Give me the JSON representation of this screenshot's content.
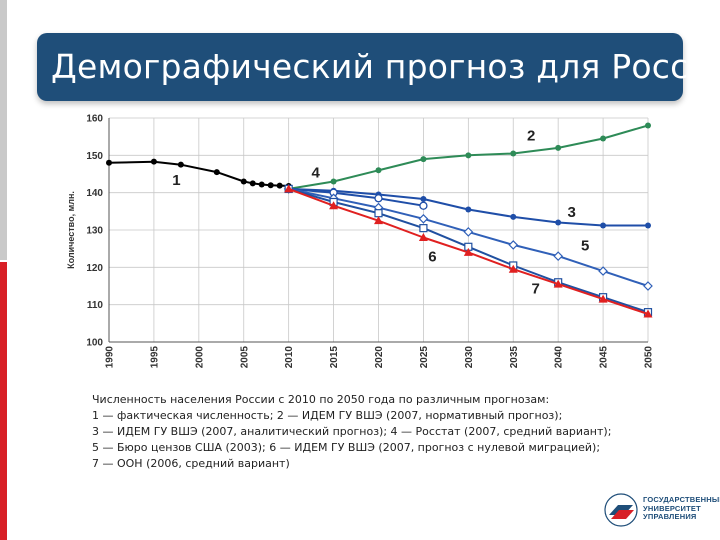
{
  "slide": {
    "title": "Демографический прогноз для России",
    "caption_lines": [
      "Численность населения России с 2010 по 2050 года по различным прогнозам:",
      "1 — фактическая численность; 2 — ИДЕМ ГУ ВШЭ (2007, нормативный прогноз);",
      "3 — ИДЕМ ГУ ВШЭ (2007, аналитический прогноз); 4 — Росстат (2007, средний вариант);",
      "5 — Бюро цензов США (2003); 6 — ИДЕМ ГУ ВШЭ (2007, прогноз с нулевой миграцией);",
      "7 — ООН (2006, средний вариант)"
    ],
    "logo_lines": [
      "ГОСУДАРСТВЕННЫЙ",
      "УНИВЕРСИТЕТ",
      "УПРАВЛЕНИЯ"
    ],
    "colors": {
      "title_bg": "#1f4e79",
      "accent_red": "#d81f26"
    }
  },
  "chart_data": {
    "type": "line",
    "ylabel": "Количество, млн.",
    "xlabel": "",
    "xlim": [
      1990,
      2050
    ],
    "ylim": [
      100,
      160
    ],
    "x_ticks": [
      1990,
      1995,
      2000,
      2005,
      2010,
      2015,
      2020,
      2025,
      2030,
      2035,
      2040,
      2045,
      2050
    ],
    "y_ticks": [
      100,
      110,
      120,
      130,
      140,
      150,
      160
    ],
    "grid": true,
    "series": [
      {
        "name": "1",
        "color": "#000000",
        "marker": "dot",
        "x": [
          1990,
          1995,
          1998,
          2002,
          2005,
          2006,
          2007,
          2008,
          2009,
          2010
        ],
        "y": [
          148.0,
          148.3,
          147.5,
          145.5,
          143.0,
          142.5,
          142.2,
          142.0,
          141.9,
          141.8
        ],
        "label_at": [
          1997.5,
          142
        ]
      },
      {
        "name": "2",
        "color": "#2e8b57",
        "marker": "dot",
        "x": [
          2010,
          2015,
          2020,
          2025,
          2030,
          2035,
          2040,
          2045,
          2050
        ],
        "y": [
          141.0,
          143.0,
          146.0,
          149.0,
          150.0,
          150.5,
          152.0,
          154.5,
          158.0
        ],
        "label_at": [
          2037,
          154
        ]
      },
      {
        "name": "3",
        "color": "#1f4ea8",
        "marker": "dot",
        "x": [
          2010,
          2015,
          2020,
          2025,
          2030,
          2035,
          2040,
          2045,
          2050
        ],
        "y": [
          141.0,
          140.5,
          139.5,
          138.3,
          135.5,
          133.5,
          132.0,
          131.2,
          131.2
        ],
        "label_at": [
          2041.5,
          133.5
        ]
      },
      {
        "name": "4",
        "color": "#1f4ea8",
        "marker": "open-circle",
        "x": [
          2010,
          2015,
          2020,
          2025
        ],
        "y": [
          141.0,
          140.0,
          138.5,
          136.5
        ],
        "label_at": [
          2013,
          144
        ]
      },
      {
        "name": "5",
        "color": "#3060b8",
        "marker": "open-diamond",
        "x": [
          2010,
          2015,
          2020,
          2025,
          2030,
          2035,
          2040,
          2045,
          2050
        ],
        "y": [
          141.0,
          138.5,
          136.0,
          133.0,
          129.5,
          126.0,
          123.0,
          119.0,
          115.0
        ],
        "label_at": [
          2043,
          124.5
        ]
      },
      {
        "name": "6",
        "color": "#2050a0",
        "marker": "open-square",
        "x": [
          2010,
          2015,
          2020,
          2025,
          2030,
          2035,
          2040,
          2045,
          2050
        ],
        "y": [
          141.0,
          137.5,
          134.5,
          130.5,
          125.5,
          120.5,
          116.0,
          112.0,
          108.0
        ],
        "label_at": [
          2026,
          121.5
        ]
      },
      {
        "name": "7",
        "color": "#e02020",
        "marker": "triangle",
        "x": [
          2010,
          2015,
          2020,
          2025,
          2030,
          2035,
          2040,
          2045,
          2050
        ],
        "y": [
          141.0,
          136.5,
          132.5,
          128.0,
          124.0,
          119.5,
          115.5,
          111.5,
          107.5
        ],
        "label_at": [
          2037.5,
          113
        ]
      }
    ]
  }
}
